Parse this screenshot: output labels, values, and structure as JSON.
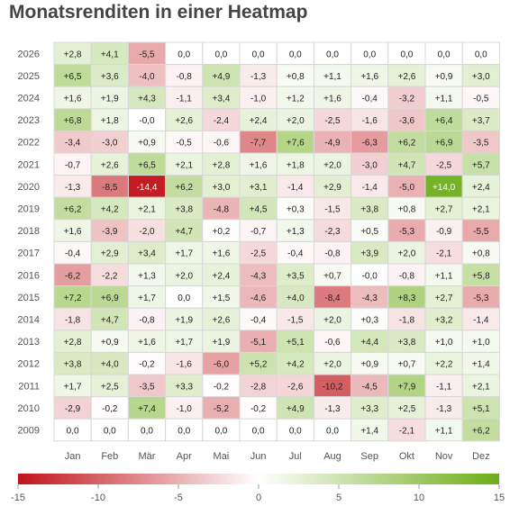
{
  "chart_data": {
    "type": "heatmap",
    "title": "Monatsrenditen in einer Heatmap",
    "xlabel": "",
    "ylabel": "",
    "columns": [
      "Jan",
      "Feb",
      "Mär",
      "Apr",
      "Mai",
      "Jun",
      "Jul",
      "Aug",
      "Sep",
      "Okt",
      "Nov",
      "Dez"
    ],
    "rows": [
      "2026",
      "2025",
      "2024",
      "2023",
      "2022",
      "2021",
      "2020",
      "2019",
      "2018",
      "2017",
      "2016",
      "2015",
      "2014",
      "2013",
      "2012",
      "2011",
      "2010",
      "2009"
    ],
    "values": [
      [
        2.8,
        4.1,
        -5.5,
        0.0,
        0.0,
        0.0,
        0.0,
        0.0,
        0.0,
        0.0,
        0.0,
        0.0
      ],
      [
        6.5,
        3.6,
        -4.0,
        -0.8,
        4.9,
        -1.3,
        0.8,
        1.1,
        1.6,
        2.6,
        0.9,
        3.0
      ],
      [
        1.6,
        1.9,
        4.3,
        -1.1,
        3.4,
        -1.0,
        1.2,
        1.6,
        -0.4,
        -3.2,
        1.1,
        -0.5
      ],
      [
        6.8,
        1.8,
        -0.0,
        2.6,
        -2.4,
        2.4,
        2.0,
        -2.5,
        -1.6,
        -3.6,
        6.4,
        3.7
      ],
      [
        -3.4,
        -3.0,
        0.9,
        -0.5,
        -0.6,
        -7.7,
        7.6,
        -4.9,
        -6.3,
        6.2,
        6.9,
        -3.5
      ],
      [
        -0.7,
        2.6,
        6.5,
        2.1,
        2.8,
        1.6,
        1.8,
        2.0,
        -3.0,
        4.7,
        -2.5,
        5.7
      ],
      [
        -1.3,
        -8.5,
        -14.4,
        6.2,
        3.0,
        3.1,
        -1.4,
        2.9,
        -1.4,
        -5.0,
        14.0,
        2.4
      ],
      [
        6.2,
        4.2,
        2.1,
        3.8,
        -4.8,
        4.5,
        0.3,
        -1.5,
        3.8,
        0.8,
        2.7,
        2.1
      ],
      [
        1.6,
        -3.9,
        -2.0,
        4.7,
        0.2,
        -0.7,
        1.3,
        -2.3,
        0.5,
        -5.3,
        -0.9,
        -5.5
      ],
      [
        -0.4,
        2.9,
        3.4,
        1.7,
        1.6,
        -2.5,
        -0.4,
        -0.8,
        3.9,
        2.0,
        -2.1,
        0.8
      ],
      [
        -6.2,
        -2.2,
        1.3,
        2.0,
        2.4,
        -4.3,
        3.5,
        0.7,
        -0.0,
        -0.8,
        1.1,
        5.8
      ],
      [
        7.2,
        6.9,
        1.7,
        0.0,
        1.5,
        -4.6,
        4.0,
        -8.4,
        -4.3,
        8.3,
        2.7,
        -5.3
      ],
      [
        -1.8,
        4.7,
        -0.8,
        1.9,
        2.6,
        -0.4,
        -1.5,
        2.0,
        0.3,
        -1.8,
        3.2,
        -1.4
      ],
      [
        2.8,
        0.9,
        1.6,
        1.7,
        1.9,
        -5.1,
        5.1,
        -0.6,
        4.4,
        3.8,
        1.0,
        1.0
      ],
      [
        3.8,
        4.0,
        -0.2,
        -1.6,
        -6.0,
        5.2,
        4.2,
        2.0,
        0.9,
        0.7,
        2.2,
        1.4
      ],
      [
        1.7,
        2.5,
        -3.5,
        3.3,
        -0.2,
        -2.8,
        -2.6,
        -10.2,
        -4.5,
        7.9,
        -1.1,
        2.1
      ],
      [
        -2.9,
        -0.2,
        7.4,
        -1.0,
        -5.2,
        -0.2,
        4.9,
        -1.3,
        3.3,
        2.5,
        -1.3,
        5.1
      ],
      [
        0.0,
        0.0,
        0.0,
        0.0,
        0.0,
        0.0,
        0.0,
        0.0,
        1.4,
        -2.1,
        1.1,
        6.2
      ]
    ],
    "color_scale": {
      "min": -15,
      "max": 15,
      "negative_color": "#c0141a",
      "zero_color": "#ffffff",
      "positive_color": "#6cad17",
      "ticks": [
        -15,
        -10,
        -5,
        0,
        5,
        10,
        15
      ]
    },
    "grid": true,
    "legend_position": "bottom"
  }
}
